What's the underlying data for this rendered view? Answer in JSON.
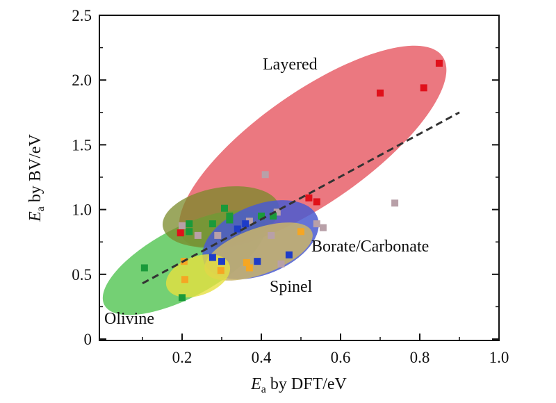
{
  "chart_data": {
    "type": "scatter",
    "title": "",
    "xlabel": {
      "symbol": "E",
      "sub": "a",
      "rest": " by DFT/eV"
    },
    "ylabel": {
      "symbol": "E",
      "sub": "a",
      "rest": " by BV/eV"
    },
    "xlim": [
      0,
      1.0
    ],
    "ylim": [
      0,
      2.5
    ],
    "xticks": [
      "0.2",
      "0.4",
      "0.6",
      "0.8",
      "1.0"
    ],
    "xtick_values": [
      0.2,
      0.4,
      0.6,
      0.8,
      1.0
    ],
    "yticks": [
      "0",
      "0.5",
      "1.0",
      "1.5",
      "2.0",
      "2.5"
    ],
    "ytick_values": [
      0,
      0.5,
      1.0,
      1.5,
      2.0,
      2.5
    ],
    "grid": false,
    "regions": [
      {
        "label": "Layered",
        "color": "#e8606a"
      },
      {
        "label": "Olivine",
        "color": "#5cc85c"
      },
      {
        "label": "Spinel",
        "color": "#4a5ad0"
      },
      {
        "label": "Borate/Carbonate",
        "color": "#c9b46a"
      }
    ],
    "trend_line": {
      "style": "dashed",
      "x": [
        0.1,
        0.9
      ],
      "y": [
        0.43,
        1.75
      ]
    },
    "series": [
      {
        "color": "#e0101a",
        "points": [
          [
            0.849,
            2.13
          ],
          [
            0.7,
            1.9
          ],
          [
            0.81,
            1.94
          ],
          [
            0.52,
            1.09
          ],
          [
            0.54,
            1.06
          ],
          [
            0.196,
            0.82
          ]
        ]
      },
      {
        "color": "#b8a0a8",
        "points": [
          [
            0.41,
            1.27
          ],
          [
            0.737,
            1.05
          ],
          [
            0.2,
            0.875
          ],
          [
            0.24,
            0.8
          ],
          [
            0.29,
            0.8
          ],
          [
            0.37,
            0.91
          ],
          [
            0.44,
            0.98
          ],
          [
            0.54,
            0.89
          ],
          [
            0.556,
            0.86
          ],
          [
            0.425,
            0.8
          ],
          [
            0.45,
            0.58
          ]
        ]
      },
      {
        "color": "#1a9a3a",
        "points": [
          [
            0.105,
            0.55
          ],
          [
            0.2,
            0.32
          ],
          [
            0.218,
            0.89
          ],
          [
            0.218,
            0.83
          ],
          [
            0.307,
            1.01
          ],
          [
            0.277,
            0.89
          ],
          [
            0.32,
            0.92
          ],
          [
            0.32,
            0.95
          ],
          [
            0.4,
            0.95
          ],
          [
            0.43,
            0.95
          ]
        ]
      },
      {
        "color": "#1e3cc8",
        "points": [
          [
            0.277,
            0.63
          ],
          [
            0.3,
            0.6
          ],
          [
            0.39,
            0.6
          ],
          [
            0.47,
            0.65
          ],
          [
            0.36,
            0.89
          ],
          [
            0.34,
            0.85
          ]
        ]
      },
      {
        "color": "#f5a623",
        "points": [
          [
            0.205,
            0.6
          ],
          [
            0.207,
            0.46
          ],
          [
            0.298,
            0.53
          ],
          [
            0.363,
            0.59
          ],
          [
            0.37,
            0.55
          ],
          [
            0.5,
            0.83
          ]
        ]
      }
    ]
  }
}
